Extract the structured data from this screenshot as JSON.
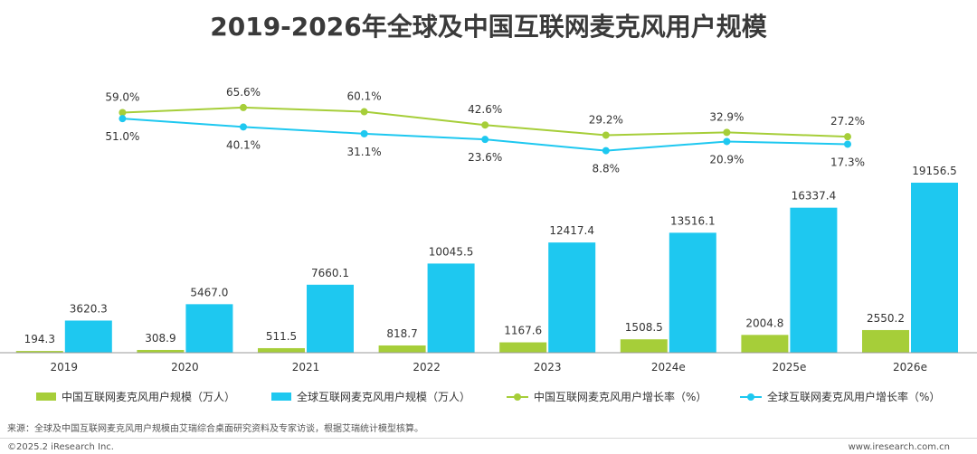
{
  "chart_data": {
    "type": "bar+line",
    "title": "2019-2026年全球及中国互联网麦克风用户规模",
    "categories": [
      "2019",
      "2020",
      "2021",
      "2022",
      "2023",
      "2024e",
      "2025e",
      "2026e"
    ],
    "bar_series": [
      {
        "name": "中国互联网麦克风用户规模（万人）",
        "color": "#a6ce39",
        "values": [
          194.3,
          308.9,
          511.5,
          818.7,
          1167.6,
          1508.5,
          2004.8,
          2550.2
        ],
        "labels": [
          "194.3",
          "308.9",
          "511.5",
          "818.7",
          "1167.6",
          "1508.5",
          "2004.8",
          "2550.2"
        ]
      },
      {
        "name": "全球互联网麦克风用户规模（万人）",
        "color": "#1ec8f0",
        "values": [
          3620.3,
          5467.0,
          7660.1,
          10045.5,
          12417.4,
          13516.1,
          16337.4,
          19156.5
        ],
        "labels": [
          "3620.3",
          "5467.0",
          "7660.1",
          "10045.5",
          "12417.4",
          "13516.1",
          "16337.4",
          "19156.5"
        ]
      }
    ],
    "line_series": [
      {
        "name": "中国互联网麦克风用户增长率（%）",
        "color": "#a6ce39",
        "values": [
          59.0,
          65.6,
          60.1,
          42.6,
          29.2,
          32.9,
          27.2
        ],
        "labels": [
          "59.0%",
          "65.6%",
          "60.1%",
          "42.6%",
          "29.2%",
          "32.9%",
          "27.2%"
        ]
      },
      {
        "name": "全球互联网麦克风用户增长率（%）",
        "color": "#1ec8f0",
        "values": [
          51.0,
          40.1,
          31.1,
          23.6,
          8.8,
          20.9,
          17.3
        ],
        "labels": [
          "51.0%",
          "40.1%",
          "31.1%",
          "23.6%",
          "8.8%",
          "20.9%",
          "17.3%"
        ]
      }
    ],
    "line_categories": [
      "2020",
      "2021",
      "2022",
      "2023",
      "2024e",
      "2025e",
      "2026e"
    ],
    "ylim": [
      0,
      19156.5
    ],
    "legend_position": "bottom"
  },
  "note": "来源：全球及中国互联网麦克风用户规模由艾瑞综合桌面研究资料及专家访谈，根据艾瑞统计模型核算。",
  "copyright": "©2025.2 iResearch Inc.",
  "website": "www.iresearch.com.cn"
}
